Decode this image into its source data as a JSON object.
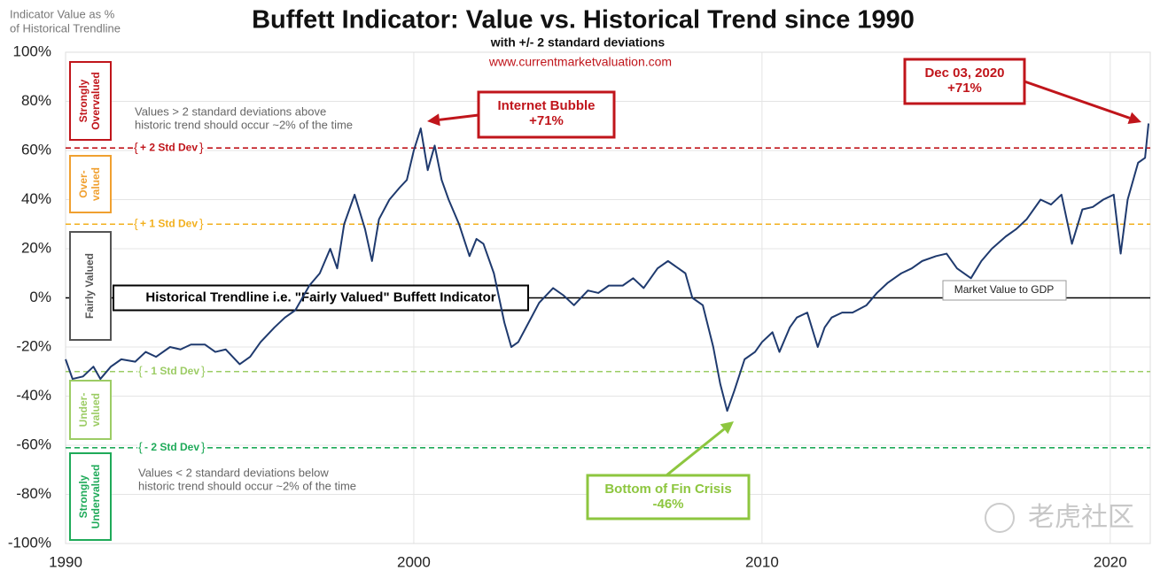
{
  "chart_data": {
    "type": "line",
    "title": "Buffett Indicator: Value vs. Historical Trend since 1990",
    "subtitle": "with +/- 2 standard deviations",
    "source": "www.currentmarketvaluation.com",
    "y_label": [
      "Indicator Value as %",
      "of Historical Trendline"
    ],
    "xlim": [
      1990,
      2021.15
    ],
    "ylim": [
      -100,
      100
    ],
    "xticks": [
      1990,
      2000,
      2010,
      2020
    ],
    "yticks": [
      {
        "value": -100,
        "label": "-100%"
      },
      {
        "value": -80,
        "label": "-80%"
      },
      {
        "value": -60,
        "label": "-60%"
      },
      {
        "value": -40,
        "label": "-40%"
      },
      {
        "value": -20,
        "label": "-20%"
      },
      {
        "value": 0,
        "label": "0%"
      },
      {
        "value": 20,
        "label": "20%"
      },
      {
        "value": 40,
        "label": "40%"
      },
      {
        "value": 60,
        "label": "60%"
      },
      {
        "value": 80,
        "label": "80%"
      },
      {
        "value": 100,
        "label": "100%"
      }
    ],
    "grid": true,
    "series": [
      {
        "name": "Market Value to GDP",
        "color": "#1f3a6e",
        "x": [
          1990.0,
          1990.2,
          1990.5,
          1990.8,
          1991.0,
          1991.3,
          1991.6,
          1992.0,
          1992.3,
          1992.6,
          1993.0,
          1993.3,
          1993.6,
          1994.0,
          1994.3,
          1994.6,
          1995.0,
          1995.3,
          1995.6,
          1996.0,
          1996.3,
          1996.6,
          1997.0,
          1997.3,
          1997.6,
          1997.8,
          1998.0,
          1998.3,
          1998.6,
          1998.8,
          1999.0,
          1999.3,
          1999.6,
          1999.8,
          2000.0,
          2000.2,
          2000.4,
          2000.6,
          2000.8,
          2001.0,
          2001.3,
          2001.6,
          2001.8,
          2002.0,
          2002.3,
          2002.6,
          2002.8,
          2003.0,
          2003.3,
          2003.6,
          2004.0,
          2004.3,
          2004.6,
          2005.0,
          2005.3,
          2005.6,
          2006.0,
          2006.3,
          2006.6,
          2007.0,
          2007.3,
          2007.6,
          2007.8,
          2008.0,
          2008.3,
          2008.6,
          2008.8,
          2009.0,
          2009.2,
          2009.5,
          2009.8,
          2010.0,
          2010.3,
          2010.5,
          2010.8,
          2011.0,
          2011.3,
          2011.6,
          2011.8,
          2012.0,
          2012.3,
          2012.6,
          2013.0,
          2013.3,
          2013.6,
          2014.0,
          2014.3,
          2014.6,
          2015.0,
          2015.3,
          2015.6,
          2016.0,
          2016.3,
          2016.6,
          2017.0,
          2017.3,
          2017.6,
          2018.0,
          2018.3,
          2018.6,
          2018.9,
          2019.2,
          2019.5,
          2019.8,
          2020.1,
          2020.3,
          2020.5,
          2020.8,
          2021.0,
          2021.1
        ],
        "values": [
          -25,
          -33,
          -32,
          -28,
          -33,
          -28,
          -25,
          -26,
          -22,
          -24,
          -20,
          -21,
          -19,
          -19,
          -22,
          -21,
          -27,
          -24,
          -18,
          -12,
          -8,
          -5,
          5,
          10,
          20,
          12,
          30,
          42,
          28,
          15,
          32,
          40,
          45,
          48,
          60,
          69,
          52,
          62,
          48,
          40,
          30,
          17,
          24,
          22,
          10,
          -10,
          -20,
          -18,
          -10,
          -2,
          4,
          1,
          -3,
          3,
          2,
          5,
          5,
          8,
          4,
          12,
          15,
          12,
          10,
          0,
          -3,
          -20,
          -35,
          -46,
          -38,
          -25,
          -22,
          -18,
          -14,
          -22,
          -12,
          -8,
          -6,
          -20,
          -12,
          -8,
          -6,
          -6,
          -3,
          2,
          6,
          10,
          12,
          15,
          17,
          18,
          12,
          8,
          15,
          20,
          25,
          28,
          32,
          40,
          38,
          42,
          22,
          36,
          37,
          40,
          42,
          18,
          40,
          55,
          57,
          71
        ]
      }
    ],
    "reference_lines": [
      {
        "value": 61,
        "label": "+ 2 Std Dev",
        "color": "#c0151b"
      },
      {
        "value": 30,
        "label": "+ 1 Std Dev",
        "color": "#f2b01e"
      },
      {
        "value": 0,
        "label": "Historical Trendline i.e. \"Fairly Valued\" Buffett Indicator",
        "color": "#000000"
      },
      {
        "value": -30,
        "label": "- 1 Std Dev",
        "color": "#9ccc65"
      },
      {
        "value": -61,
        "label": "- 2 Std Dev",
        "color": "#1faa59"
      }
    ],
    "zones": [
      {
        "label": [
          "Strongly",
          "Overvalued"
        ],
        "color": "#c0151b"
      },
      {
        "label": [
          "Over-",
          "valued"
        ],
        "color": "#f0a030"
      },
      {
        "label": [
          "Fairly Valued"
        ],
        "color": "#555555"
      },
      {
        "label": [
          "Under-",
          "valued"
        ],
        "color": "#9ccc65"
      },
      {
        "label": [
          "Strongly",
          "Undervalued"
        ],
        "color": "#1faa59"
      }
    ],
    "notes": [
      [
        "Values > 2 standard deviations above",
        "historic trend should occur ~2% of the time"
      ],
      [
        "Values < 2 standard deviations below",
        "historic trend should occur ~2% of the time"
      ]
    ],
    "annotations": [
      {
        "text": [
          "Internet Bubble",
          "+71%"
        ],
        "color": "#c0151b"
      },
      {
        "text": [
          "Dec 03, 2020",
          "+71%"
        ],
        "color": "#c0151b"
      },
      {
        "text": [
          "Bottom of Fin Crisis",
          "-46%"
        ],
        "color": "#8dc63f"
      }
    ],
    "watermark": "老虎社区"
  }
}
